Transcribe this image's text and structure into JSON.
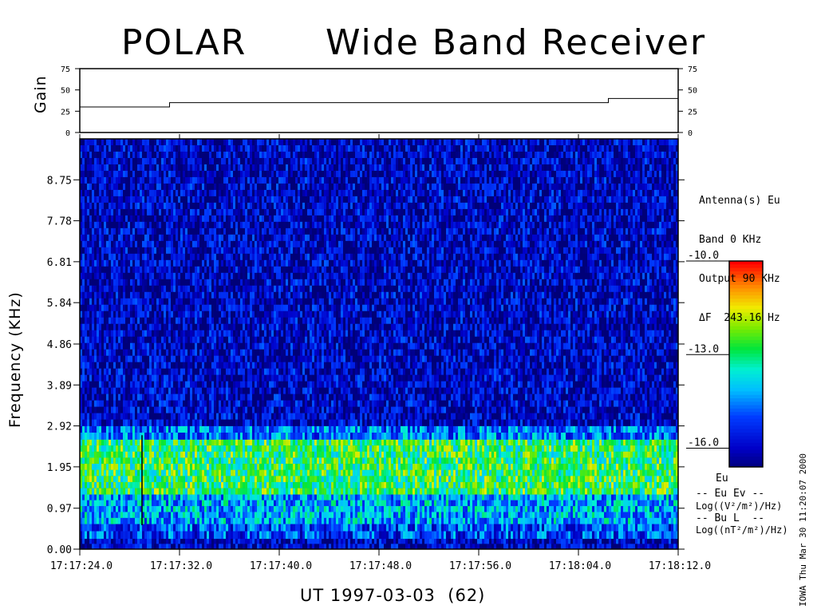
{
  "title_left": "POLAR",
  "title_right": "Wide Band Receiver",
  "gain_panel": {
    "ylabel": "Gain",
    "ticks": [
      "0",
      "25",
      "50",
      "75"
    ],
    "ylim": [
      0,
      75
    ]
  },
  "ylabel": "Frequency (KHz)",
  "xlabel": "UT 1997-03-03  (62)",
  "info_lines": [
    "Antenna(s) Eu",
    "Band 0 KHz",
    "Output 90 KHz",
    "ΔF  243.16 Hz"
  ],
  "colorbar": {
    "ticks": [
      "-10.0",
      "-13.0",
      "-16.0"
    ],
    "range": [
      -16.6,
      -10.0
    ],
    "legend_top": "Eu",
    "legend_line1": "-- Eu Ev --",
    "legend_units1": "Log((V²/m²)/Hz)",
    "legend_line2": "-- Bu L  --",
    "legend_units2": "Log((nT²/m²)/Hz)"
  },
  "side_stamp": "IOWA Thu Mar 30 11:20:07 2000",
  "colors": {
    "low": "#00007f",
    "background_band": "#1f3fd0",
    "signal_band": "#c8e020",
    "high": "#ff0000"
  },
  "chart_data": {
    "type": "heatmap",
    "title": "POLAR      Wide Band Receiver",
    "xlabel": "UT 1997-03-03  (62)",
    "ylabel": "Frequency (KHz)",
    "x_ticks": [
      "17:17:24.0",
      "17:17:32.0",
      "17:17:40.0",
      "17:17:48.0",
      "17:17:56.0",
      "17:18:04.0",
      "17:18:12.0"
    ],
    "y_ticks": [
      "0.00",
      "0.97",
      "1.95",
      "2.92",
      "3.89",
      "4.86",
      "5.84",
      "6.81",
      "7.78",
      "8.75"
    ],
    "ylim": [
      0,
      9.72
    ],
    "x_range_seconds": [
      0,
      48
    ],
    "intensity_units": "Log((V²/m²)/Hz)",
    "intensity_range": [
      -16.6,
      -10.0
    ],
    "bands": [
      {
        "freq_khz": [
          0.0,
          0.25
        ],
        "level": -16.0
      },
      {
        "freq_khz": [
          0.25,
          0.6
        ],
        "level": -15.0
      },
      {
        "freq_khz": [
          0.6,
          1.3
        ],
        "level": -14.2
      },
      {
        "freq_khz": [
          1.3,
          2.6
        ],
        "level": -12.8
      },
      {
        "freq_khz": [
          2.6,
          2.92
        ],
        "level": -14.6
      },
      {
        "freq_khz": [
          2.92,
          9.72
        ],
        "level": -16.0
      }
    ],
    "gain": {
      "segments": [
        {
          "t_start": 0,
          "t_end": 7.2,
          "value": 30
        },
        {
          "t_start": 7.2,
          "t_end": 42.4,
          "value": 35
        },
        {
          "t_start": 42.4,
          "t_end": 48,
          "value": 40
        }
      ]
    }
  }
}
